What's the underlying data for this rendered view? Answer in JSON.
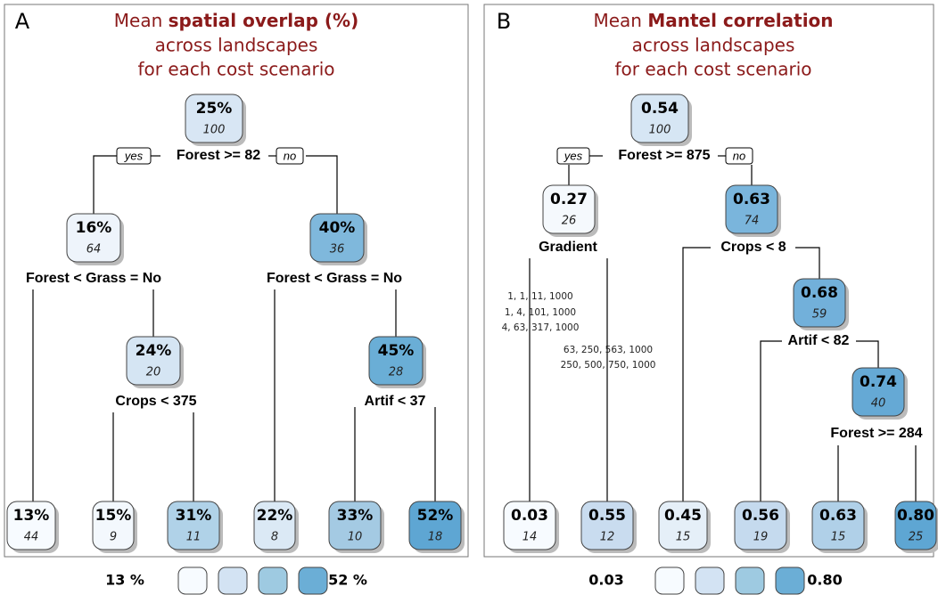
{
  "panels": [
    {
      "letter": "A",
      "title_prefix": "Mean",
      "title_bold": "spatial overlap (%)",
      "title_lines": [
        "across landscapes",
        "for each cost scenario"
      ],
      "yes": "yes",
      "no": "no",
      "nodes": [
        {
          "value": "25%",
          "n": "100",
          "fill": "#d8e6f4"
        },
        {
          "value": "16%",
          "n": "64",
          "fill": "#eef4fb"
        },
        {
          "value": "40%",
          "n": "36",
          "fill": "#7fb8dc"
        },
        {
          "value": "24%",
          "n": "20",
          "fill": "#d5e5f3"
        },
        {
          "value": "45%",
          "n": "28",
          "fill": "#6aaed6"
        },
        {
          "value": "13%",
          "n": "44",
          "fill": "#f7fbff"
        },
        {
          "value": "15%",
          "n": "9",
          "fill": "#f3f8fd"
        },
        {
          "value": "31%",
          "n": "11",
          "fill": "#b0d2e8"
        },
        {
          "value": "22%",
          "n": "8",
          "fill": "#dbe9f5"
        },
        {
          "value": "33%",
          "n": "10",
          "fill": "#a4cae3"
        },
        {
          "value": "52%",
          "n": "18",
          "fill": "#5ea6d3"
        }
      ],
      "splits": [
        "Forest >= 82",
        "Forest < Grass = No",
        "Forest < Grass = No",
        "Crops < 375",
        "Artif < 37"
      ],
      "annotations": [],
      "legend": {
        "min": "13 %",
        "max": "52 %",
        "colors": [
          "#f7fbff",
          "#d3e3f3",
          "#9ecae1",
          "#6baed6"
        ]
      }
    },
    {
      "letter": "B",
      "title_prefix": "Mean",
      "title_bold": "Mantel correlation",
      "title_lines": [
        "across landscapes",
        "for each cost scenario"
      ],
      "yes": "yes",
      "no": "no",
      "nodes": [
        {
          "value": "0.54",
          "n": "100",
          "fill": "#d6e6f4"
        },
        {
          "value": "0.27",
          "n": "26",
          "fill": "#f5f9fd"
        },
        {
          "value": "0.63",
          "n": "74",
          "fill": "#7ab5dc"
        },
        {
          "value": "0.68",
          "n": "59",
          "fill": "#72b0da"
        },
        {
          "value": "0.74",
          "n": "40",
          "fill": "#65a9d5"
        },
        {
          "value": "0.03",
          "n": "14",
          "fill": "#f7fbff"
        },
        {
          "value": "0.55",
          "n": "12",
          "fill": "#c9dcef"
        },
        {
          "value": "0.45",
          "n": "15",
          "fill": "#e5eff8"
        },
        {
          "value": "0.56",
          "n": "19",
          "fill": "#c5daee"
        },
        {
          "value": "0.63",
          "n": "15",
          "fill": "#b0d0e8"
        },
        {
          "value": "0.80",
          "n": "25",
          "fill": "#5ea6d3"
        }
      ],
      "splits": [
        "Forest >= 875",
        "Gradient",
        "Crops < 8",
        "Artif < 82",
        "Forest >= 284"
      ],
      "annotations": [
        "1, 1, 11, 1000",
        "1, 4, 101, 1000",
        "4, 63, 317, 1000",
        "63, 250, 563, 1000",
        "250, 500, 750, 1000"
      ],
      "legend": {
        "min": "0.03",
        "max": "0.80",
        "colors": [
          "#f7fbff",
          "#d3e3f3",
          "#9ecae1",
          "#6baed6"
        ]
      }
    }
  ]
}
